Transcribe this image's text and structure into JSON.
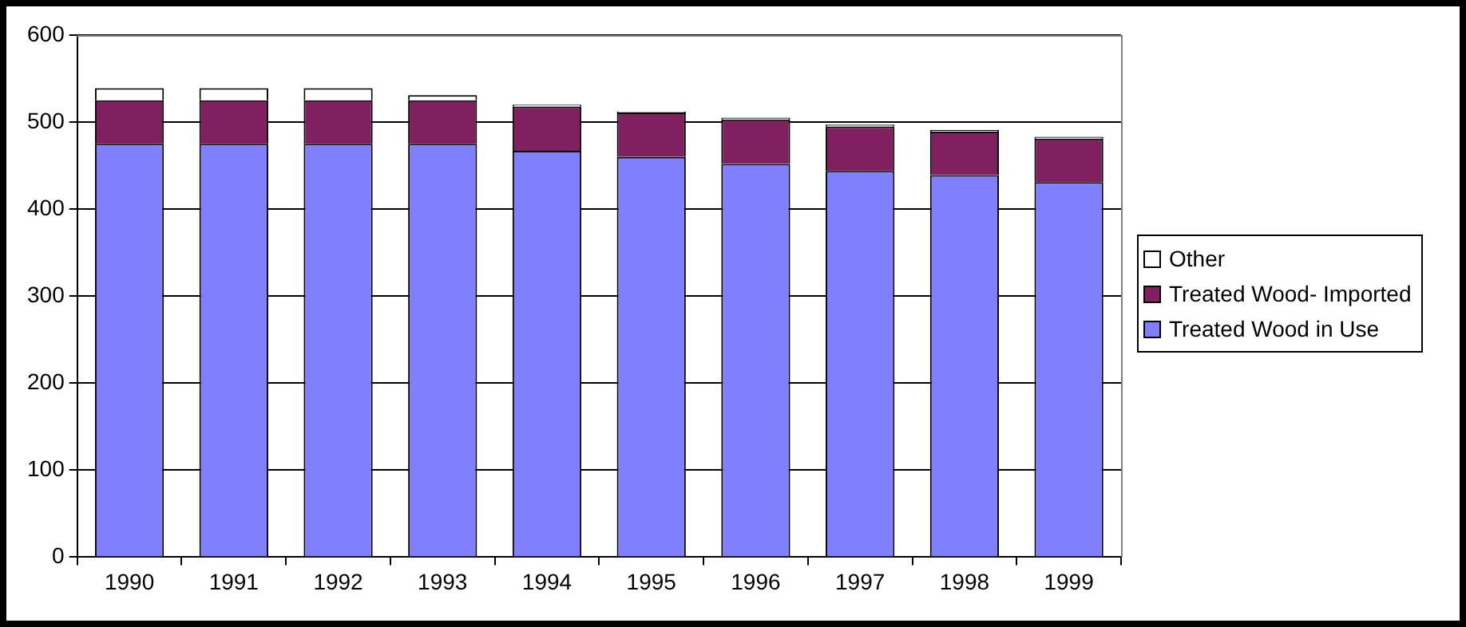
{
  "chart_data": {
    "type": "bar",
    "stacked": true,
    "categories": [
      "1990",
      "1991",
      "1992",
      "1993",
      "1994",
      "1995",
      "1996",
      "1997",
      "1998",
      "1999"
    ],
    "series": [
      {
        "name": "Treated Wood in Use",
        "color": "#8080ff",
        "values": [
          475,
          475,
          475,
          475,
          467,
          460,
          452,
          444,
          439,
          431
        ]
      },
      {
        "name": "Treated Wood- Imported",
        "color": "#802060",
        "values": [
          50,
          50,
          50,
          50,
          51,
          51,
          51,
          51,
          50,
          50
        ]
      },
      {
        "name": "Other",
        "color": "#ffffff",
        "values": [
          14,
          14,
          14,
          6,
          2,
          1,
          2,
          2,
          2,
          2
        ]
      }
    ],
    "ylim": [
      0,
      600
    ],
    "yticks": [
      0,
      100,
      200,
      300,
      400,
      500,
      600
    ],
    "grid": "y",
    "legend": "right"
  }
}
